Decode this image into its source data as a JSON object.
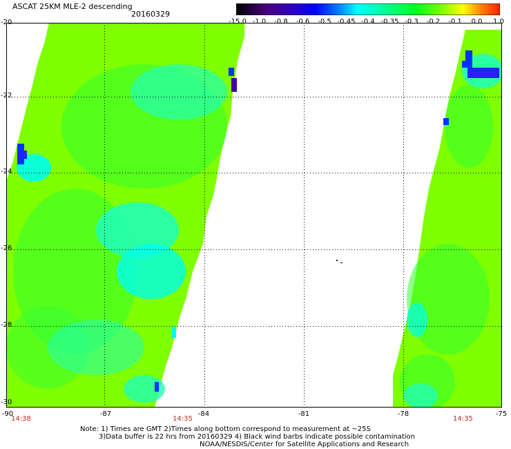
{
  "header": {
    "title": "ASCAT 25KM MLE-2 descending",
    "date": "20160329"
  },
  "colorbar": {
    "labels": [
      "-15.0",
      "-1.0",
      "-0.8",
      "-0.6",
      "-0.5",
      "-0.45",
      "-0.4",
      "-0.35",
      "-0.3",
      "-0.2",
      "-0.1",
      "0.0",
      "1.0"
    ],
    "colors": [
      "#000000",
      "#4b0082",
      "#2b00c8",
      "#0000ff",
      "#0090ff",
      "#00ffff",
      "#00ffb0",
      "#00ff70",
      "#00ff20",
      "#80ff00",
      "#ffff00",
      "#ff8000",
      "#ff2000"
    ]
  },
  "map": {
    "lat_labels": [
      "-20",
      "-22",
      "-24",
      "-26",
      "-28",
      "-30"
    ],
    "lon_labels": [
      "-90",
      "-87",
      "-84",
      "-81",
      "-78",
      "-75"
    ],
    "time_labels": [
      "14:38",
      "14:35",
      "14:35"
    ],
    "colors": {
      "base": "#7fff00",
      "green": "#33ff33",
      "aqua": "#22ffb4",
      "cyan": "#00ffee",
      "blue": "#0033ff",
      "navy": "#2222ff",
      "violet": "#4400aa"
    }
  },
  "notes": {
    "line1": "Note: 1) Times are GMT 2)Times along bottom correspond to measurement at ~25S",
    "line2": "3)Data buffer is 22 hrs from 20160329 4) Black wind barbs indicate possible contamination",
    "line3": "NOAA/NESDIS/Center for Satellite Applications and Research"
  }
}
